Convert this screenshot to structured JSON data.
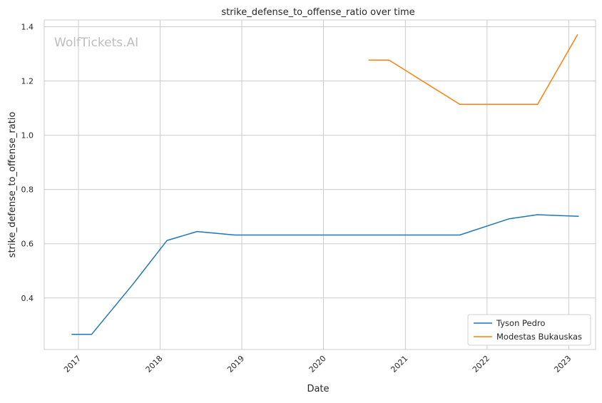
{
  "watermark": "WolfTickets.AI",
  "chart_data": {
    "type": "line",
    "title": "strike_defense_to_offense_ratio over time",
    "xlabel": "Date",
    "ylabel": "strike_defense_to_offense_ratio",
    "xlim": [
      "2016-08-01",
      "2023-05-01"
    ],
    "ylim": [
      0.21,
      1.425
    ],
    "x_ticks": [
      "2017",
      "2018",
      "2019",
      "2020",
      "2021",
      "2022",
      "2023"
    ],
    "y_ticks": [
      "0.4",
      "0.6",
      "0.8",
      "1.0",
      "1.2",
      "1.4"
    ],
    "grid": true,
    "legend_position": "lower-right",
    "series": [
      {
        "name": "Tyson Pedro",
        "color": "#1f77b4",
        "points": [
          [
            "2016-12-01",
            0.266
          ],
          [
            "2017-03-01",
            0.266
          ],
          [
            "2017-09-01",
            0.45
          ],
          [
            "2018-02-01",
            0.612
          ],
          [
            "2018-06-15",
            0.645
          ],
          [
            "2018-12-01",
            0.632
          ],
          [
            "2021-09-01",
            0.632
          ],
          [
            "2022-04-10",
            0.692
          ],
          [
            "2022-08-15",
            0.707
          ],
          [
            "2023-02-15",
            0.701
          ]
        ]
      },
      {
        "name": "Modestas Bukauskas",
        "color": "#ff7f0e",
        "points": [
          [
            "2020-07-20",
            1.277
          ],
          [
            "2020-10-20",
            1.277
          ],
          [
            "2021-09-01",
            1.114
          ],
          [
            "2022-08-15",
            1.114
          ],
          [
            "2023-02-10",
            1.372
          ]
        ]
      }
    ]
  }
}
